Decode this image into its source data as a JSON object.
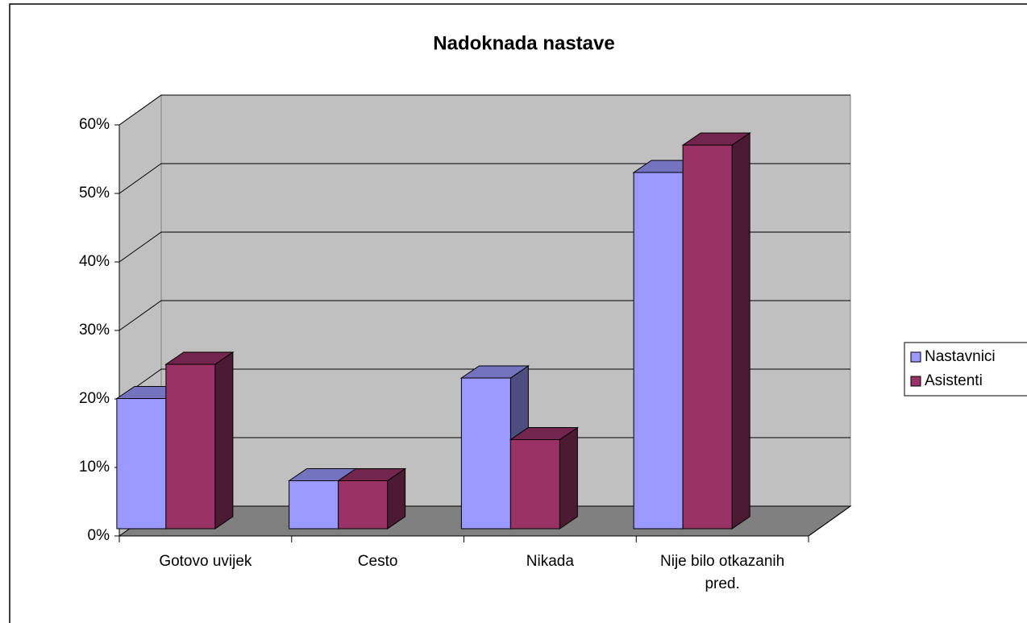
{
  "chart_data": {
    "type": "bar3d",
    "title": "Nadoknada nastave",
    "categories": [
      "Gotovo uvijek",
      "Cesto",
      "Nikada",
      "Nije bilo otkazanih pred."
    ],
    "series": [
      {
        "name": "Nastavnici",
        "color": "#9999ff",
        "values": [
          19,
          7,
          22,
          52
        ]
      },
      {
        "name": "Asistenti",
        "color": "#993366",
        "values": [
          24,
          7,
          13,
          56
        ]
      }
    ],
    "ylim": [
      0,
      60
    ],
    "yticks": [
      {
        "value": 0,
        "label": "0%"
      },
      {
        "value": 10,
        "label": "10%"
      },
      {
        "value": 20,
        "label": "20%"
      },
      {
        "value": 30,
        "label": "30%"
      },
      {
        "value": 40,
        "label": "40%"
      },
      {
        "value": 50,
        "label": "50%"
      },
      {
        "value": 60,
        "label": "60%"
      }
    ],
    "grid": true,
    "legend": "right"
  }
}
